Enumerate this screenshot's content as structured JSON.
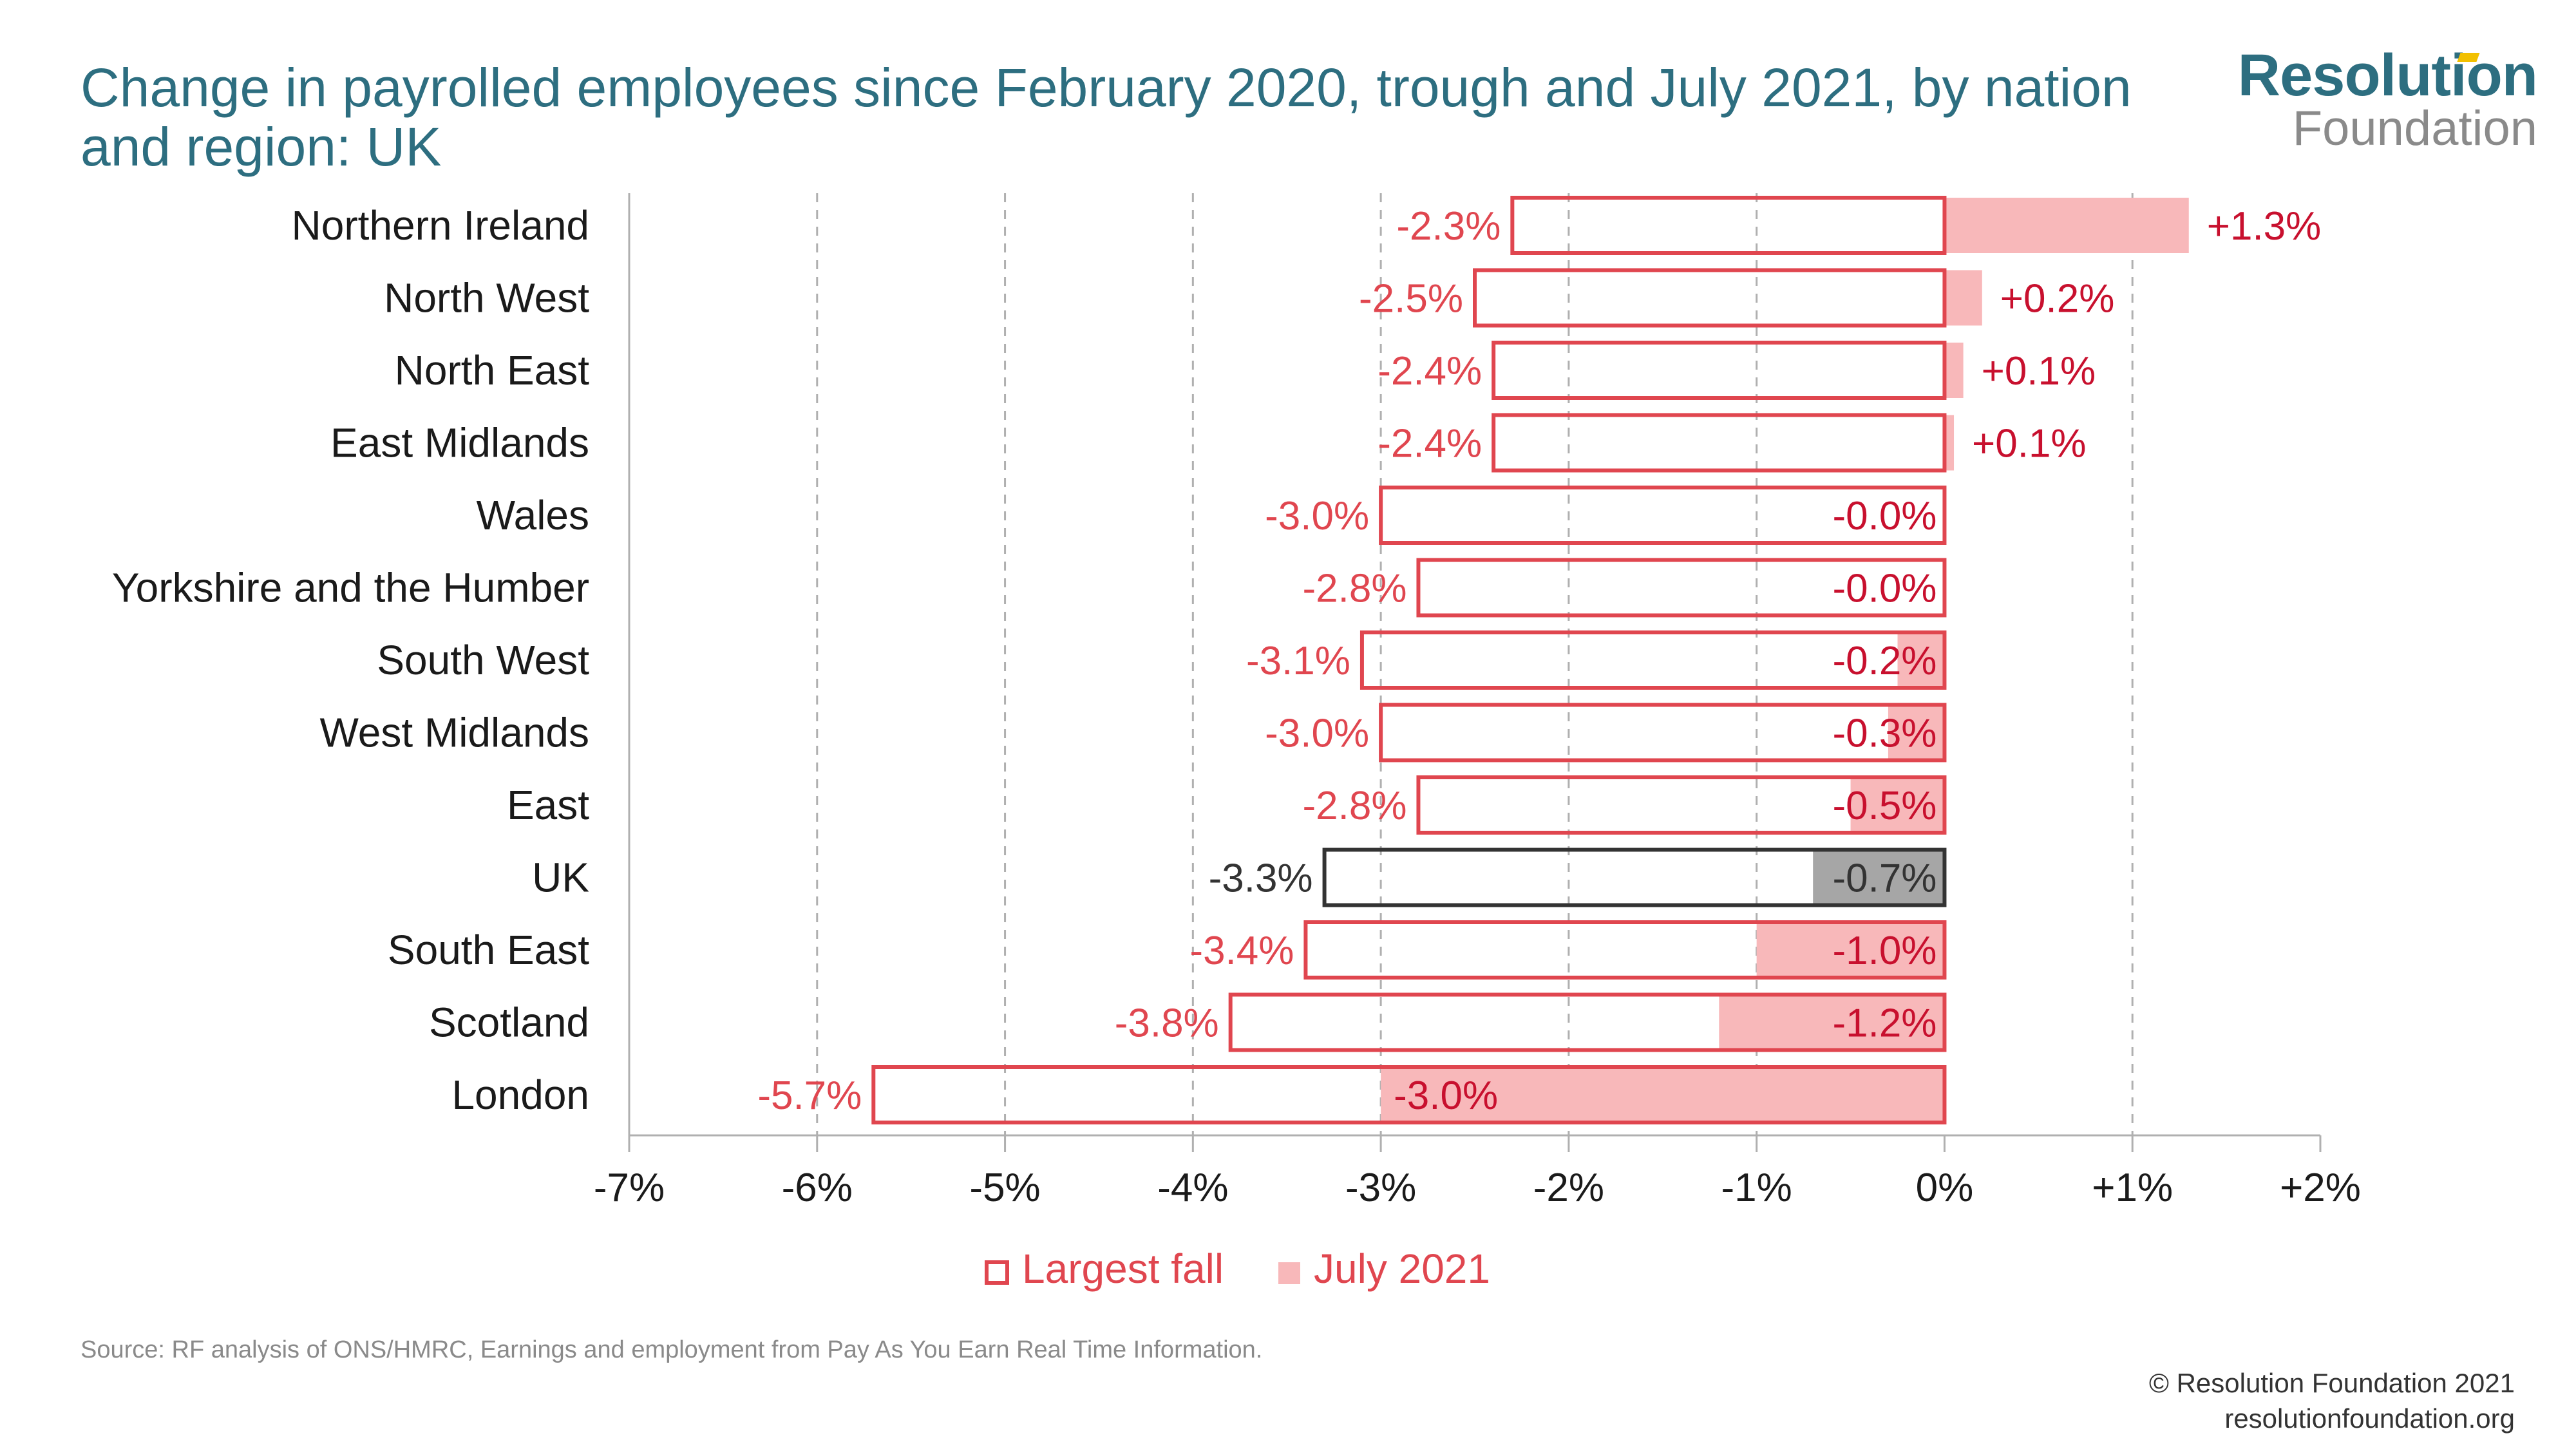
{
  "colors": {
    "accent": "#e0464f",
    "accent_fill": "#f8b8ba",
    "uk_stroke": "#333333",
    "uk_fill": "#a6a6a6",
    "title": "#2d6e80",
    "grid": "#b0b0b0"
  },
  "logo": {
    "line1": "Resolution",
    "line2": "Foundation"
  },
  "source": "Source: RF analysis of ONS/HMRC, Earnings and employment from Pay As You Earn Real Time Information.",
  "copyright": {
    "line1": "© Resolution Foundation 2021",
    "line2": "resolutionfoundation.org"
  },
  "chart_data": {
    "type": "bar",
    "orientation": "horizontal",
    "title": "Change in payrolled employees since February 2020, trough and July 2021, by nation and region: UK",
    "xlim": [
      -7,
      2
    ],
    "xticks": [
      -7,
      -6,
      -5,
      -4,
      -3,
      -2,
      -1,
      0,
      1,
      2
    ],
    "xtick_labels": [
      "-7%",
      "-6%",
      "-5%",
      "-4%",
      "-3%",
      "-2%",
      "-1%",
      "0%",
      "+1%",
      "+2%"
    ],
    "grid": "vertical dashed",
    "legend_position": "bottom",
    "categories": [
      "Northern Ireland",
      "North West",
      "North East",
      "East Midlands",
      "Wales",
      "Yorkshire and the Humber",
      "South West",
      "West Midlands",
      "East",
      "UK",
      "South East",
      "Scotland",
      "London"
    ],
    "highlight": "UK",
    "series": [
      {
        "name": "Largest fall",
        "style": "outline",
        "values": [
          -2.3,
          -2.5,
          -2.4,
          -2.4,
          -3.0,
          -2.8,
          -3.1,
          -3.0,
          -2.8,
          -3.3,
          -3.4,
          -3.8,
          -5.7
        ],
        "labels": [
          "-2.3%",
          "-2.5%",
          "-2.4%",
          "-2.4%",
          "-3.0%",
          "-2.8%",
          "-3.1%",
          "-3.0%",
          "-2.8%",
          "-3.3%",
          "-3.4%",
          "-3.8%",
          "-5.7%"
        ]
      },
      {
        "name": "July 2021",
        "style": "filled",
        "values": [
          1.3,
          0.2,
          0.1,
          0.05,
          -0.01,
          -0.01,
          -0.25,
          -0.3,
          -0.5,
          -0.7,
          -1.0,
          -1.2,
          -3.0
        ],
        "labels": [
          "+1.3%",
          "+0.2%",
          "+0.1%",
          "+0.1%",
          "-0.0%",
          "-0.0%",
          "-0.2%",
          "-0.3%",
          "-0.5%",
          "-0.7%",
          "-1.0%",
          "-1.2%",
          "-3.0%"
        ]
      }
    ]
  }
}
